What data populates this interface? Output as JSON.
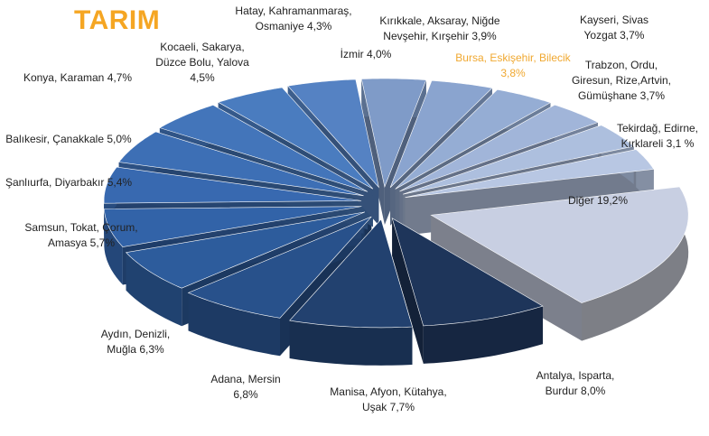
{
  "chart_data": {
    "type": "pie3d",
    "title": "TARIM",
    "categories": [
      "İzmir",
      "Kırıkkale, Aksaray, Niğde Nevşehir, Kırşehir",
      "Bursa, Eskişehir, Bilecik",
      "Kayseri, Sivas Yozgat",
      "Trabzon, Ordu, Giresun, Rize,Artvin, Gümüşhane",
      "Tekirdağ, Edirne, Kırklareli",
      "Diğer",
      "Antalya, Isparta, Burdur",
      "Manisa, Afyon, Kütahya, Uşak",
      "Adana, Mersin",
      "Aydın, Denizli, Muğla",
      "Samsun, Tokat, Çorum, Amasya",
      "Şanlıurfa, Diyarbakır",
      "Balıkesir, Çanakkale",
      "Konya, Karaman",
      "Kocaeli, Sakarya, Düzce Bolu, Yalova",
      "Hatay, Kahramanmaraş, Osmaniye"
    ],
    "values": [
      4.0,
      3.9,
      3.8,
      3.7,
      3.7,
      3.1,
      19.2,
      8.0,
      7.7,
      6.8,
      6.3,
      5.7,
      5.4,
      5.0,
      4.7,
      4.5,
      4.3
    ],
    "value_labels": [
      "4,0%",
      "3,9%",
      "3,8%",
      "3,7%",
      "3,7%",
      "3,1 %",
      "19,2%",
      "8,0%",
      "7,7%",
      "6,8%",
      "6,3%",
      "5,7%",
      "5,4%",
      "5,0%",
      "4,7%",
      "4,5%",
      "4,3%"
    ],
    "colors": [
      "#7f9bc8",
      "#8aa4cf",
      "#95add4",
      "#a1b5d9",
      "#adbfde",
      "#b8c7e3",
      "#c8cfe2",
      "#1e355a",
      "#22416f",
      "#28518b",
      "#2d5c9c",
      "#3263a8",
      "#3869b0",
      "#3d6fb5",
      "#4375ba",
      "#4a7cbf",
      "#5582c3"
    ],
    "highlight_color": "#f0a830",
    "highlight_index": 2
  }
}
